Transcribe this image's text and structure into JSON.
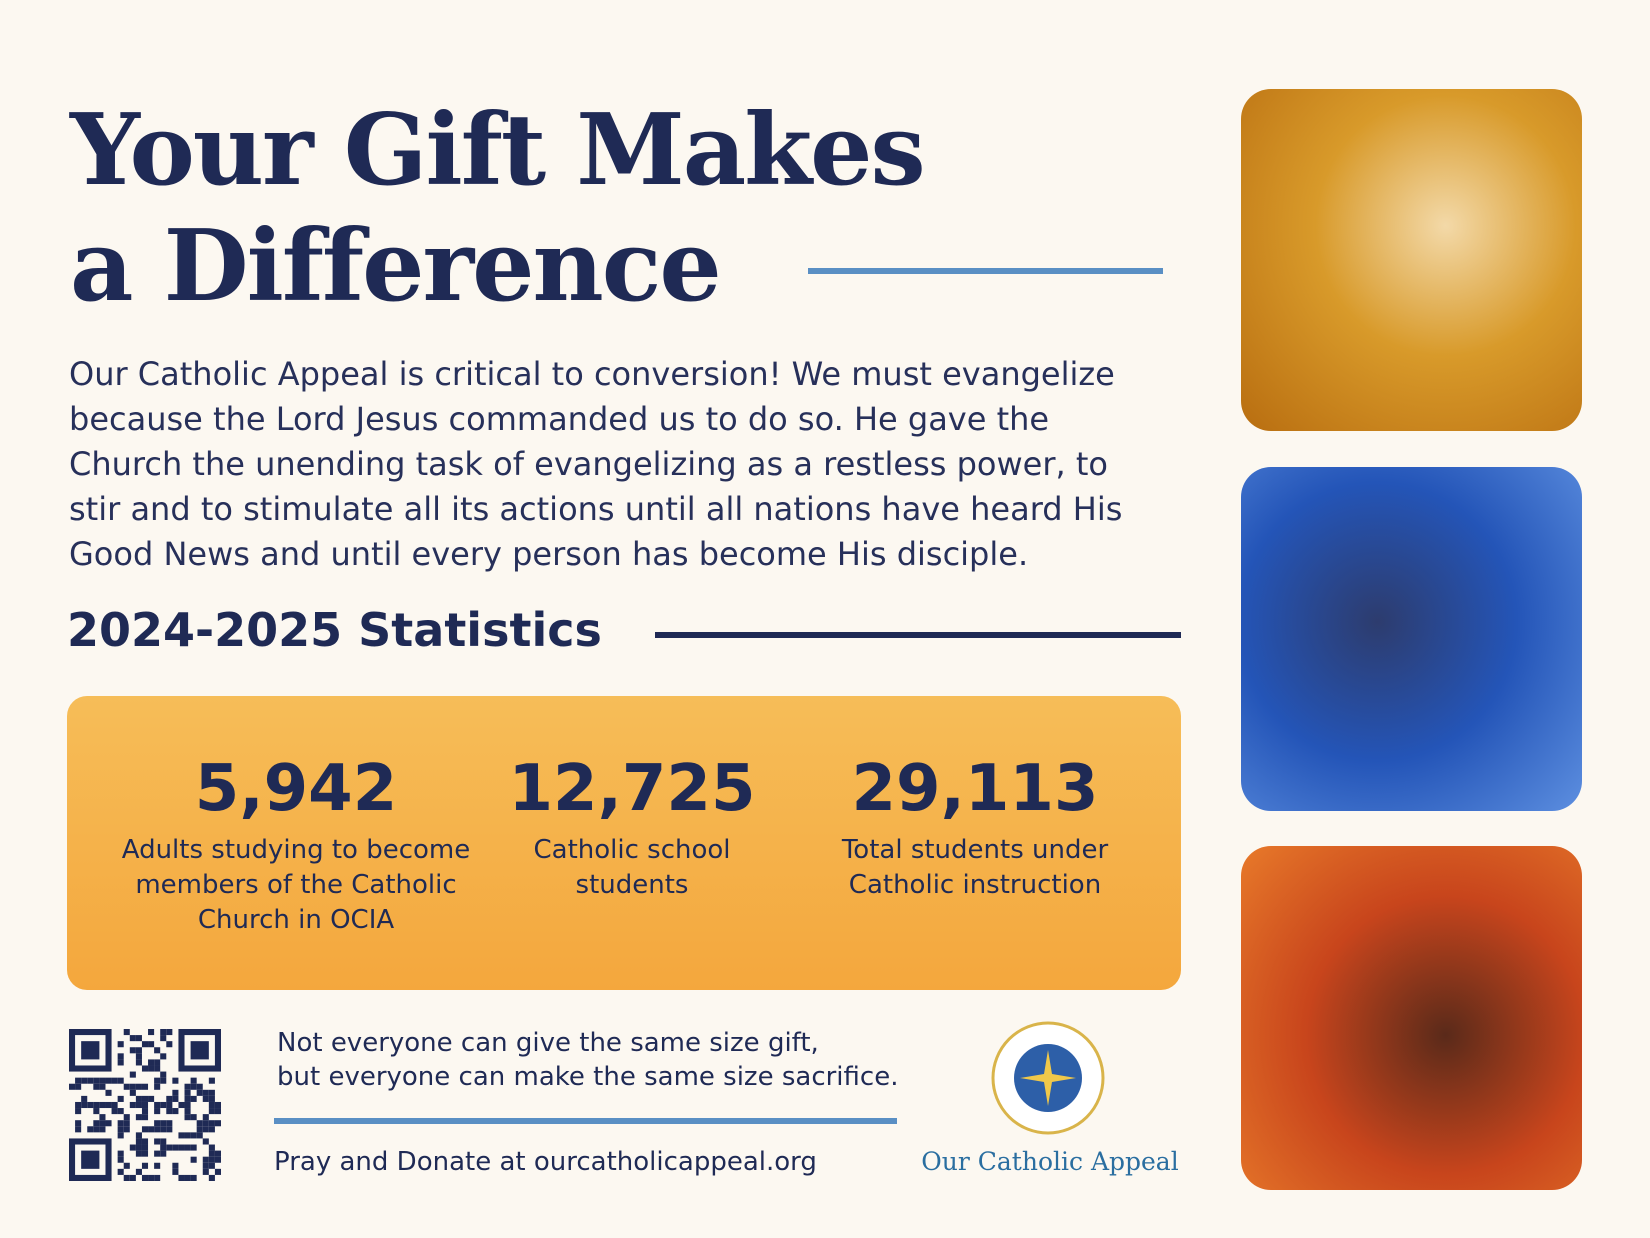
{
  "header": {
    "title_lines": [
      "Your Gift Makes",
      "a Difference"
    ]
  },
  "body": {
    "lines": [
      "Our Catholic Appeal is critical to conversion! We must evangelize",
      "because the Lord Jesus commanded us to do so. He gave the",
      "Church the unending task of evangelizing as a restless power, to",
      "stir and to stimulate all its actions until all nations have heard His",
      "Good News and until every person has become His disciple."
    ]
  },
  "statistics": {
    "heading": "2024-2025 Statistics",
    "items": [
      {
        "number": "5,942",
        "label_lines": [
          "Adults studying to become",
          "members of the Catholic",
          "Church in OCIA"
        ]
      },
      {
        "number": "12,725",
        "label_lines": [
          "Catholic school",
          "students"
        ]
      },
      {
        "number": "29,113",
        "label_lines": [
          "Total students under",
          "Catholic instruction"
        ]
      }
    ]
  },
  "footer": {
    "quote_lines": [
      "Not everyone can give the same size gift,",
      "but everyone can make the same size sacrifice."
    ],
    "donate": "Pray and Donate at ourcatholicappeal.org",
    "logo_text": "Our Catholic Appeal"
  }
}
